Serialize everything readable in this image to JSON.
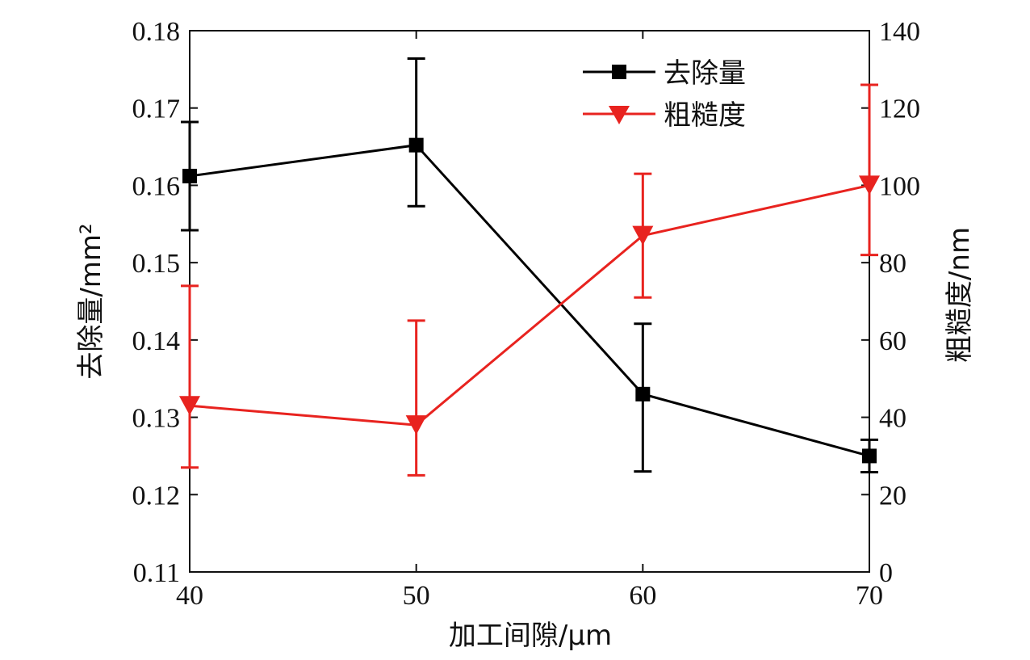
{
  "chart_data": {
    "type": "line",
    "xlabel": "加工间隙/μm",
    "ylabel_left": "去除量/mm²",
    "ylabel_right": "粗糙度/nm",
    "x": [
      40,
      50,
      60,
      70
    ],
    "x_ticks": [
      "40",
      "50",
      "60",
      "70"
    ],
    "xlim": [
      40,
      70
    ],
    "ylim_left": [
      0.11,
      0.18
    ],
    "ylim_right": [
      0,
      140
    ],
    "y_left_ticks": [
      "0.11",
      "0.12",
      "0.13",
      "0.14",
      "0.15",
      "0.16",
      "0.17",
      "0.18"
    ],
    "y_right_ticks": [
      "0",
      "20",
      "40",
      "60",
      "80",
      "100",
      "120",
      "140"
    ],
    "grid": false,
    "legend_position": "top-right",
    "series": [
      {
        "name": "去除量",
        "axis": "left",
        "color": "#000000",
        "marker": "square",
        "values": [
          0.1612,
          0.1652,
          0.133,
          0.125
        ],
        "error_low": [
          0.1542,
          0.1573,
          0.123,
          0.1229
        ],
        "error_high": [
          0.1682,
          0.1764,
          0.1421,
          0.1271
        ]
      },
      {
        "name": "粗糙度",
        "axis": "right",
        "color": "#e8231f",
        "marker": "triangle-down",
        "values": [
          43,
          38,
          87,
          100
        ],
        "error_low": [
          27,
          25,
          71,
          82
        ],
        "error_high": [
          74,
          65,
          103,
          126
        ]
      }
    ]
  }
}
